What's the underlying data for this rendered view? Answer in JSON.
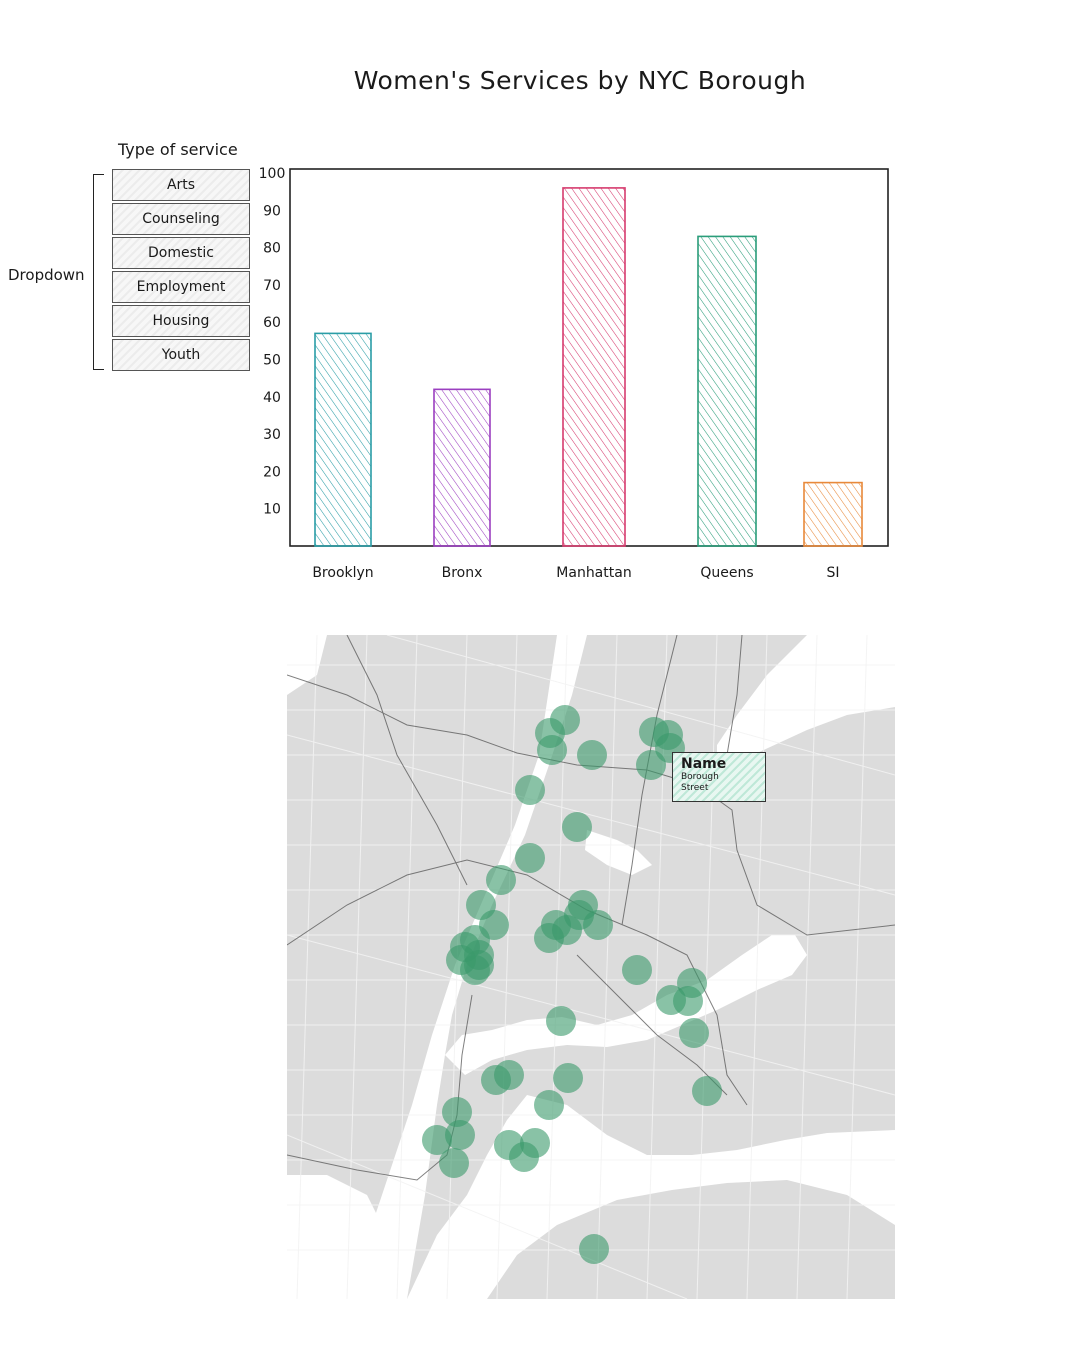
{
  "title": "Women's Services by NYC Borough",
  "dropdown_note": "Dropdown",
  "service_filter": {
    "heading": "Type of service",
    "options": [
      "Arts",
      "Counseling",
      "Domestic",
      "Employment",
      "Housing",
      "Youth"
    ]
  },
  "chart_data": {
    "type": "bar",
    "title": "Women's Services by NYC Borough",
    "categories": [
      "Brooklyn",
      "Bronx",
      "Manhattan",
      "Queens",
      "SI"
    ],
    "values": [
      57,
      42,
      96,
      83,
      17
    ],
    "colors": [
      "#2a9da6",
      "#9b3fc0",
      "#d63b6e",
      "#2a9d7a",
      "#e8893a"
    ],
    "ylim": [
      0,
      100
    ],
    "yticks": [
      10,
      20,
      30,
      40,
      50,
      60,
      70,
      80,
      90,
      100
    ],
    "xlabel": "",
    "ylabel": "",
    "grid": false
  },
  "map": {
    "marker_color": "#3a9a6a",
    "tooltip": {
      "name": "Name",
      "borough": "Borough",
      "street": "Street"
    }
  }
}
